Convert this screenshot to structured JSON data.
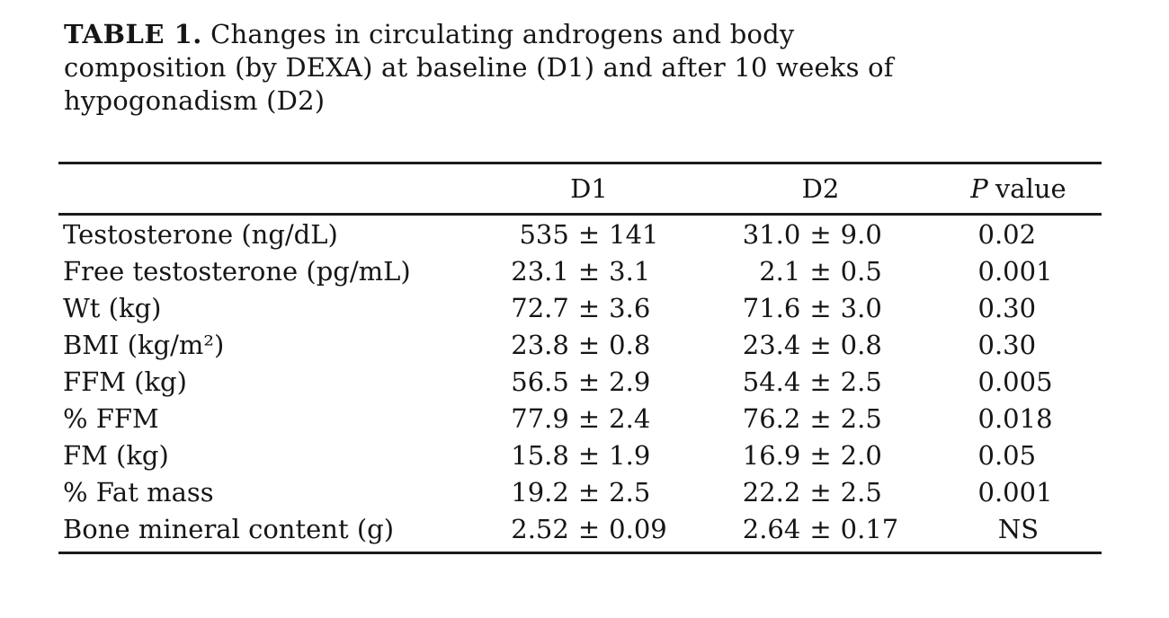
{
  "page": {
    "background_color": "#ffffff",
    "text_color": "#161616",
    "rule_color": "#1b1b1b"
  },
  "caption": {
    "label": "TABLE 1.",
    "line1_rest": "Changes in circulating androgens and body",
    "line2": "composition (by DEXA) at baseline (D1) and after 10 weeks of",
    "line3": "hypogonadism (D2)"
  },
  "table": {
    "pm": "±",
    "columns": {
      "row_header": "",
      "d1": "D1",
      "d2": "D2",
      "p_italic": "P",
      "p_rest": "value"
    },
    "rows": [
      {
        "label": "Testosterone (ng/dL)",
        "d1_mean": "535",
        "d1_sd": "141",
        "d2_mean": "31.0",
        "d2_sd": "9.0",
        "p": "0.02"
      },
      {
        "label": "Free testosterone (pg/mL)",
        "d1_mean": "23.1",
        "d1_sd": "3.1",
        "d2_mean": "2.1",
        "d2_sd": "0.5",
        "p": "0.001"
      },
      {
        "label": "Wt (kg)",
        "d1_mean": "72.7",
        "d1_sd": "3.6",
        "d2_mean": "71.6",
        "d2_sd": "3.0",
        "p": "0.30"
      },
      {
        "label": "BMI (kg/m²)",
        "d1_mean": "23.8",
        "d1_sd": "0.8",
        "d2_mean": "23.4",
        "d2_sd": "0.8",
        "p": "0.30"
      },
      {
        "label": "FFM (kg)",
        "d1_mean": "56.5",
        "d1_sd": "2.9",
        "d2_mean": "54.4",
        "d2_sd": "2.5",
        "p": "0.005"
      },
      {
        "label": "% FFM",
        "d1_mean": "77.9",
        "d1_sd": "2.4",
        "d2_mean": "76.2",
        "d2_sd": "2.5",
        "p": "0.018"
      },
      {
        "label": "FM (kg)",
        "d1_mean": "15.8",
        "d1_sd": "1.9",
        "d2_mean": "16.9",
        "d2_sd": "2.0",
        "p": "0.05"
      },
      {
        "label": "% Fat mass",
        "d1_mean": "19.2",
        "d1_sd": "2.5",
        "d2_mean": "22.2",
        "d2_sd": "2.5",
        "p": "0.001"
      },
      {
        "label": "Bone mineral content (g)",
        "d1_mean": "2.52",
        "d1_sd": "0.09",
        "d2_mean": "2.64",
        "d2_sd": "0.17",
        "p": "NS"
      }
    ]
  }
}
